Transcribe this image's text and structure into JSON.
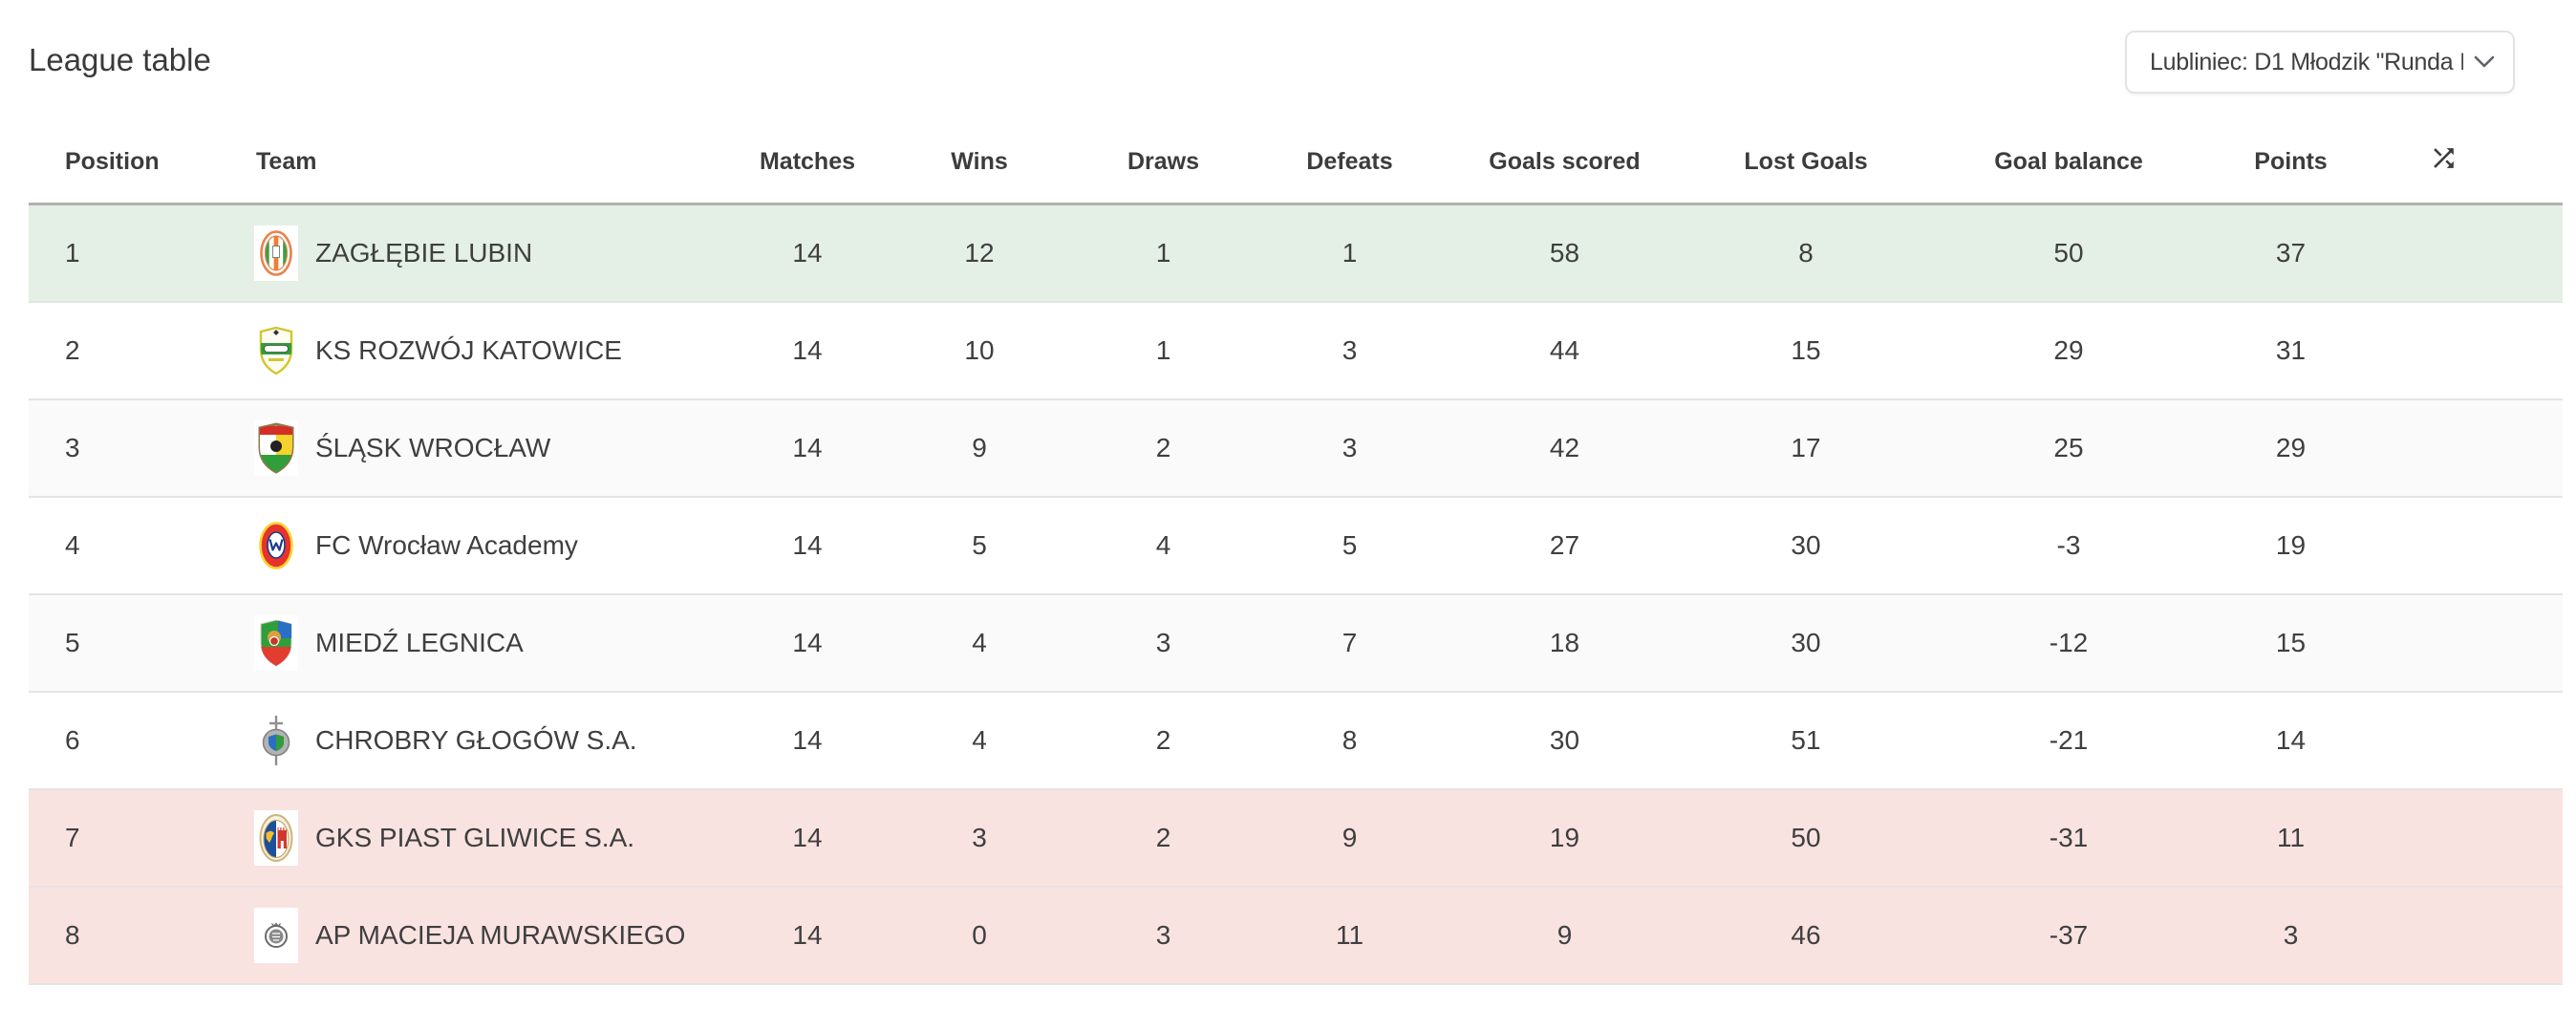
{
  "page": {
    "title": "League table"
  },
  "league_select": {
    "value": "Lubliniec: D1 Młodzik \"Runda I",
    "chevron_icon": "chevron-down-icon"
  },
  "table": {
    "headers": [
      "Position",
      "Team",
      "Matches",
      "Wins",
      "Draws",
      "Defeats",
      "Goals scored",
      "Lost Goals",
      "Goal balance",
      "Points"
    ],
    "sort_icon": "shuffle-icon",
    "rows": [
      {
        "position": 1,
        "team": "ZAGŁĘBIE LUBIN",
        "crest": "zaglebie-lubin-crest",
        "matches": 14,
        "wins": 12,
        "draws": 1,
        "defeats": 1,
        "goals_scored": 58,
        "lost_goals": 8,
        "goal_balance": 50,
        "points": 37,
        "highlight": "promotion"
      },
      {
        "position": 2,
        "team": "KS ROZWÓJ KATOWICE",
        "crest": "rozwoj-katowice-crest",
        "matches": 14,
        "wins": 10,
        "draws": 1,
        "defeats": 3,
        "goals_scored": 44,
        "lost_goals": 15,
        "goal_balance": 29,
        "points": 31,
        "highlight": "none"
      },
      {
        "position": 3,
        "team": "ŚLĄSK WROCŁAW",
        "crest": "slask-wroclaw-crest",
        "matches": 14,
        "wins": 9,
        "draws": 2,
        "defeats": 3,
        "goals_scored": 42,
        "lost_goals": 17,
        "goal_balance": 25,
        "points": 29,
        "highlight": "stripe"
      },
      {
        "position": 4,
        "team": "FC Wrocław Academy",
        "crest": "fc-wroclaw-academy-crest",
        "matches": 14,
        "wins": 5,
        "draws": 4,
        "defeats": 5,
        "goals_scored": 27,
        "lost_goals": 30,
        "goal_balance": -3,
        "points": 19,
        "highlight": "none"
      },
      {
        "position": 5,
        "team": "MIEDŹ LEGNICA",
        "crest": "miedz-legnica-crest",
        "matches": 14,
        "wins": 4,
        "draws": 3,
        "defeats": 7,
        "goals_scored": 18,
        "lost_goals": 30,
        "goal_balance": -12,
        "points": 15,
        "highlight": "stripe"
      },
      {
        "position": 6,
        "team": "CHROBRY GŁOGÓW S.A.",
        "crest": "chrobry-glogow-crest",
        "matches": 14,
        "wins": 4,
        "draws": 2,
        "defeats": 8,
        "goals_scored": 30,
        "lost_goals": 51,
        "goal_balance": -21,
        "points": 14,
        "highlight": "none"
      },
      {
        "position": 7,
        "team": "GKS PIAST GLIWICE S.A.",
        "crest": "piast-gliwice-crest",
        "matches": 14,
        "wins": 3,
        "draws": 2,
        "defeats": 9,
        "goals_scored": 19,
        "lost_goals": 50,
        "goal_balance": -31,
        "points": 11,
        "highlight": "relegation"
      },
      {
        "position": 8,
        "team": "AP MACIEJA MURAWSKIEGO",
        "crest": "ap-macieja-murawskiego-crest",
        "matches": 14,
        "wins": 0,
        "draws": 3,
        "defeats": 11,
        "goals_scored": 9,
        "lost_goals": 46,
        "goal_balance": -37,
        "points": 3,
        "highlight": "relegation"
      }
    ]
  },
  "colors": {
    "promotion_row": "#e4f0e5",
    "relegation_row": "#f9e3e1",
    "stripe_row": "#fafafa",
    "header_border": "#b3b0ad",
    "row_border": "#e4e4e4",
    "text": "#3f3f3f"
  }
}
